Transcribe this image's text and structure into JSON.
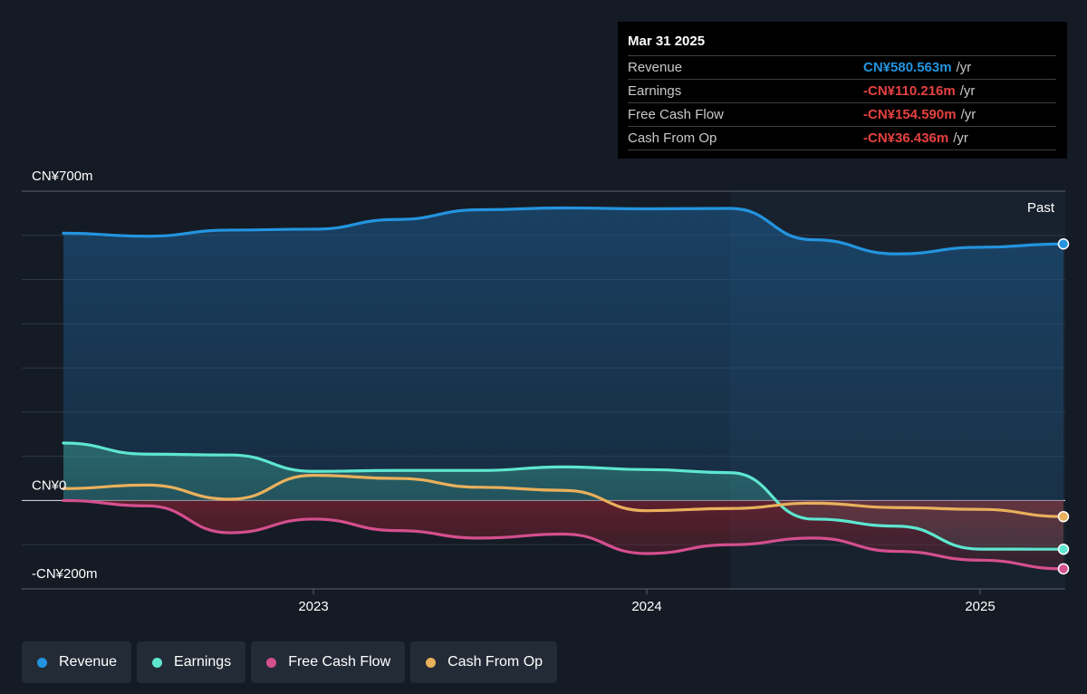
{
  "tooltip": {
    "date": "Mar 31 2025",
    "rows": [
      {
        "label": "Revenue",
        "value": "CN¥580.563m",
        "unit": "/yr",
        "color": "#2394df"
      },
      {
        "label": "Earnings",
        "value": "-CN¥110.216m",
        "unit": "/yr",
        "color": "#e64141"
      },
      {
        "label": "Free Cash Flow",
        "value": "-CN¥154.590m",
        "unit": "/yr",
        "color": "#e64141"
      },
      {
        "label": "Cash From Op",
        "value": "-CN¥36.436m",
        "unit": "/yr",
        "color": "#e64141"
      }
    ]
  },
  "legend": [
    {
      "label": "Revenue",
      "color": "#2394df"
    },
    {
      "label": "Earnings",
      "color": "#5ee6d0"
    },
    {
      "label": "Free Cash Flow",
      "color": "#d44f8e"
    },
    {
      "label": "Cash From Op",
      "color": "#e9b05c"
    }
  ],
  "chart_data": {
    "type": "line",
    "title": "",
    "xlabel": "",
    "ylabel": "",
    "y_tick_labels": [
      {
        "value": 700,
        "label": "CN¥700m"
      },
      {
        "value": 0,
        "label": "CN¥0"
      },
      {
        "value": -200,
        "label": "-CN¥200m"
      }
    ],
    "x_tick_labels": [
      {
        "value": 2023.0,
        "label": "2023"
      },
      {
        "value": 2024.0,
        "label": "2024"
      },
      {
        "value": 2025.0,
        "label": "2025"
      }
    ],
    "ylim": [
      -200,
      700
    ],
    "xlim": [
      2022.12,
      2025.25
    ],
    "past_label": "Past",
    "past_region_start": 2024.25,
    "grid": true,
    "legend_position": "bottom",
    "series": [
      {
        "name": "Revenue",
        "color": "#2394df",
        "x": [
          2022.25,
          2022.5,
          2022.75,
          2023.0,
          2023.25,
          2023.5,
          2023.75,
          2024.0,
          2024.25,
          2024.5,
          2024.75,
          2025.0,
          2025.25
        ],
        "y": [
          605,
          598,
          612,
          614,
          636,
          658,
          662,
          660,
          661,
          590,
          558,
          573,
          580.6
        ]
      },
      {
        "name": "Earnings",
        "color": "#5ee6d0",
        "x": [
          2022.25,
          2022.5,
          2022.75,
          2023.0,
          2023.25,
          2023.5,
          2023.75,
          2024.0,
          2024.25,
          2024.5,
          2024.75,
          2025.0,
          2025.25
        ],
        "y": [
          130,
          105,
          103,
          66,
          68,
          68,
          76,
          70,
          63,
          -42,
          -58,
          -110,
          -110.2
        ]
      },
      {
        "name": "Free Cash Flow",
        "color": "#d44f8e",
        "x": [
          2022.25,
          2022.5,
          2022.75,
          2023.0,
          2023.25,
          2023.5,
          2023.75,
          2024.0,
          2024.25,
          2024.5,
          2024.75,
          2025.0,
          2025.25
        ],
        "y": [
          0,
          -12,
          -73,
          -42,
          -68,
          -85,
          -76,
          -120,
          -100,
          -85,
          -115,
          -135,
          -154.6
        ]
      },
      {
        "name": "Cash From Op",
        "color": "#e9b05c",
        "x": [
          2022.25,
          2022.5,
          2022.75,
          2023.0,
          2023.25,
          2023.5,
          2023.75,
          2024.0,
          2024.25,
          2024.5,
          2024.75,
          2025.0,
          2025.25
        ],
        "y": [
          27,
          35,
          3,
          57,
          50,
          30,
          23,
          -23,
          -18,
          -6,
          -16,
          -20,
          -36.4
        ]
      }
    ]
  }
}
